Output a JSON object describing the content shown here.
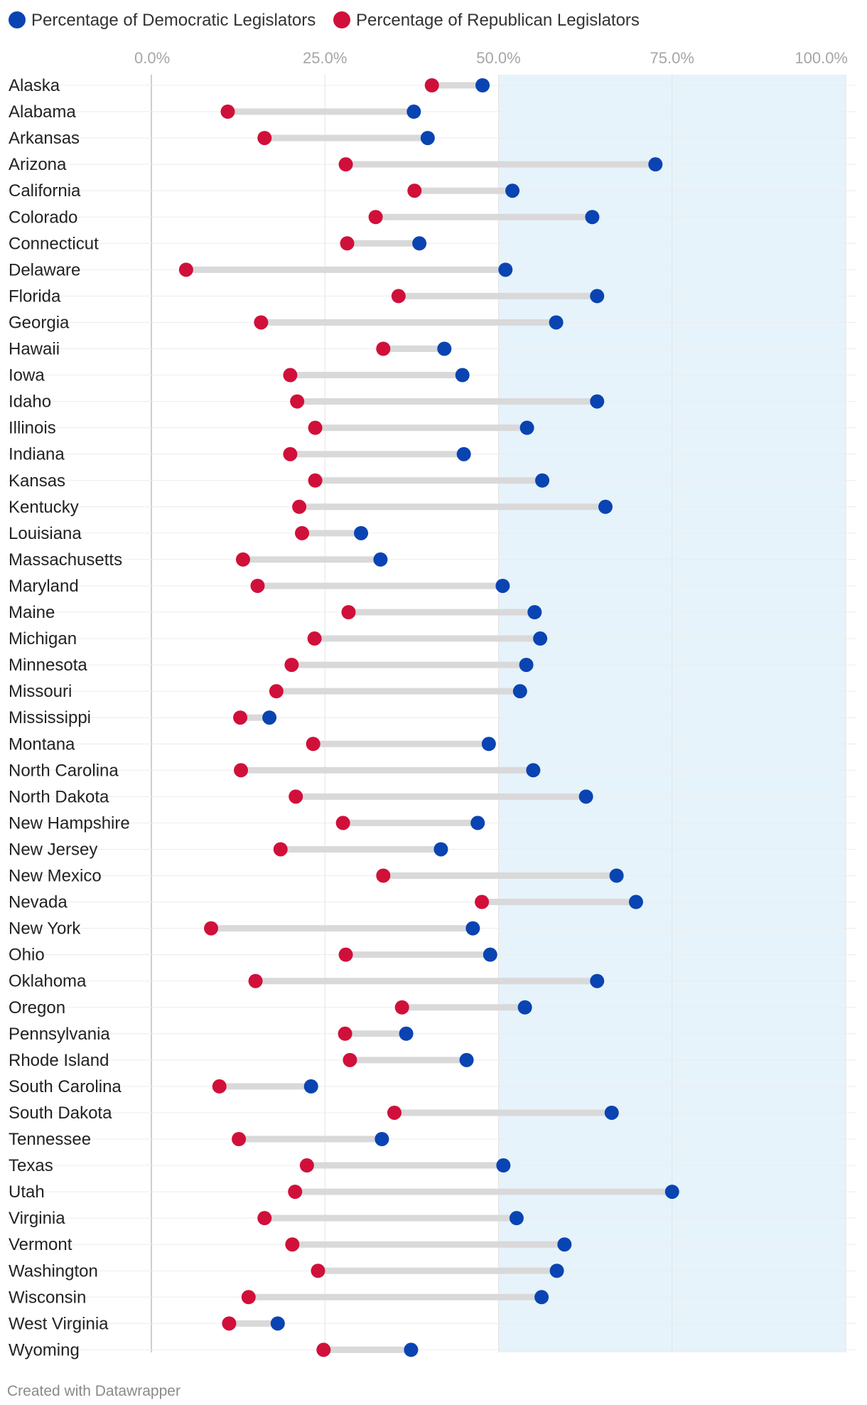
{
  "chart_data": {
    "type": "dot-range",
    "legend": [
      {
        "name": "Percentage of Democratic Legislators",
        "color": "#0a44b2"
      },
      {
        "name": "Percentage of Republican Legislators",
        "color": "#d0103a"
      }
    ],
    "x_ticks": [
      "0.0%",
      "25.0%",
      "50.0%",
      "75.0%",
      "100.0%"
    ],
    "xlim": [
      0,
      100
    ],
    "highlight_range": [
      50,
      100
    ],
    "highlight_color": "#e6f3fa",
    "connector_color": "#d9d9d9",
    "categories": [
      "Alaska",
      "Alabama",
      "Arkansas",
      "Arizona",
      "California",
      "Colorado",
      "Connecticut",
      "Delaware",
      "Florida",
      "Georgia",
      "Hawaii",
      "Iowa",
      "Idaho",
      "Illinois",
      "Indiana",
      "Kansas",
      "Kentucky",
      "Louisiana",
      "Massachusetts",
      "Maryland",
      "Maine",
      "Michigan",
      "Minnesota",
      "Missouri",
      "Mississippi",
      "Montana",
      "North Carolina",
      "North Dakota",
      "New Hampshire",
      "New Jersey",
      "New Mexico",
      "Nevada",
      "New York",
      "Ohio",
      "Oklahoma",
      "Oregon",
      "Pennsylvania",
      "Rhode Island",
      "South Carolina",
      "South Dakota",
      "Tennessee",
      "Texas",
      "Utah",
      "Virginia",
      "Vermont",
      "Washington",
      "Wisconsin",
      "West Virginia",
      "Wyoming"
    ],
    "series": [
      {
        "name": "Percentage of Democratic Legislators",
        "values": [
          47.7,
          37.8,
          39.8,
          72.6,
          52.0,
          63.5,
          38.6,
          51.0,
          64.2,
          58.3,
          42.2,
          44.8,
          64.2,
          54.1,
          45.0,
          56.3,
          65.4,
          30.2,
          33.0,
          50.6,
          55.2,
          56.0,
          54.0,
          53.1,
          17.0,
          48.6,
          55.0,
          62.6,
          47.0,
          41.7,
          67.0,
          69.8,
          46.3,
          48.8,
          64.2,
          53.8,
          36.7,
          45.4,
          23.0,
          66.3,
          33.2,
          50.7,
          75.0,
          52.6,
          59.5,
          58.4,
          56.2,
          18.2,
          37.4
        ]
      },
      {
        "name": "Percentage of Republican Legislators",
        "values": [
          40.4,
          11.0,
          16.3,
          28.0,
          37.9,
          32.3,
          28.2,
          5.0,
          35.6,
          15.8,
          33.4,
          20.0,
          21.0,
          23.6,
          20.0,
          23.6,
          21.3,
          21.7,
          13.2,
          15.3,
          28.4,
          23.5,
          20.2,
          18.0,
          12.8,
          23.3,
          12.9,
          20.8,
          27.6,
          18.6,
          33.4,
          47.6,
          8.6,
          28.0,
          15.0,
          36.1,
          27.9,
          28.6,
          9.8,
          35.0,
          12.6,
          22.4,
          20.7,
          16.3,
          20.3,
          24.0,
          14.0,
          11.2,
          24.8
        ]
      }
    ]
  },
  "footer": "Created with Datawrapper"
}
